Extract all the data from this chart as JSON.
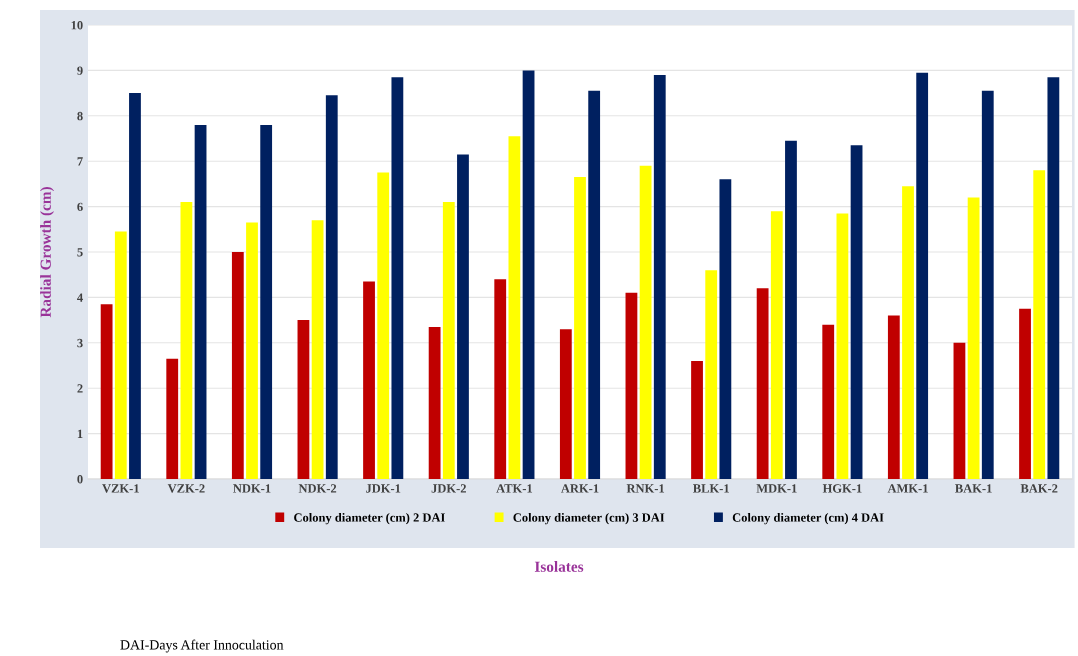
{
  "chart_data": {
    "type": "bar",
    "xlabel": "Isolates",
    "ylabel": "Radial Growth (cm)",
    "categories": [
      "VZK-1",
      "VZK-2",
      "NDK-1",
      "NDK-2",
      "JDK-1",
      "JDK-2",
      "ATK-1",
      "ARK-1",
      "RNK-1",
      "BLK-1",
      "MDK-1",
      "HGK-1",
      "AMK-1",
      "BAK-1",
      "BAK-2"
    ],
    "series": [
      {
        "name": "Colony diameter (cm) 2 DAI",
        "color": "#c00000",
        "values": [
          3.85,
          2.65,
          5.0,
          3.5,
          4.35,
          3.35,
          4.4,
          3.3,
          4.1,
          2.6,
          4.2,
          3.4,
          3.6,
          3.0,
          3.75
        ]
      },
      {
        "name": "Colony diameter (cm) 3 DAI",
        "color": "#ffff00",
        "values": [
          5.45,
          6.1,
          5.65,
          5.7,
          6.75,
          6.1,
          7.55,
          6.65,
          6.9,
          4.6,
          5.9,
          5.85,
          6.45,
          6.2,
          6.8
        ]
      },
      {
        "name": "Colony diameter (cm) 4 DAI",
        "color": "#002060",
        "values": [
          8.5,
          7.8,
          7.8,
          8.45,
          8.85,
          7.15,
          9.0,
          8.55,
          8.9,
          6.6,
          7.45,
          7.35,
          8.95,
          8.55,
          8.85
        ]
      }
    ],
    "ylim": [
      0,
      10
    ],
    "yticks": [
      0,
      1,
      2,
      3,
      4,
      5,
      6,
      7,
      8,
      9,
      10
    ],
    "grid": "y",
    "legend": "bottom",
    "annotations": [
      "DAI-Days After Innoculation"
    ]
  }
}
